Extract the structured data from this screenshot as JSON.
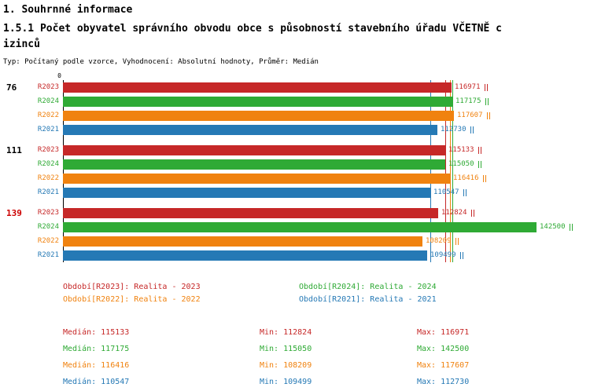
{
  "header": {
    "title": "1. Souhrnné informace",
    "heading_line1": "1.5.1 Počet obyvatel správního obvodu obce s působností stavebního úřadu VČETNĚ c",
    "heading_line2": "izinců",
    "subtitle": "Typ: Počítaný podle vzorce, Vyhodnocení: Absolutní hodnoty, Průměr: Medián"
  },
  "colors": {
    "R2023": "#c62828",
    "R2024": "#2faa35",
    "R2022": "#f0820f",
    "R2021": "#2579b5",
    "group_highlight": "#cc0000",
    "axis": "#000000"
  },
  "chart_data": {
    "type": "bar",
    "orientation": "horizontal",
    "axis_origin_label": "0",
    "xlim": [
      0,
      142500
    ],
    "series_order": [
      "R2023",
      "R2024",
      "R2022",
      "R2021"
    ],
    "groups": [
      {
        "label": "76",
        "highlight": false,
        "values": {
          "R2023": 116971,
          "R2024": 117175,
          "R2022": 117607,
          "R2021": 112730
        }
      },
      {
        "label": "111",
        "highlight": false,
        "values": {
          "R2023": 115133,
          "R2024": 115050,
          "R2022": 116416,
          "R2021": 110547
        }
      },
      {
        "label": "139",
        "highlight": true,
        "values": {
          "R2023": 112824,
          "R2024": 142500,
          "R2022": 108209,
          "R2021": 109499
        }
      }
    ]
  },
  "legend": [
    {
      "series": "R2023",
      "label": "Období[R2023]: Realita - 2023"
    },
    {
      "series": "R2024",
      "label": "Období[R2024]: Realita - 2024"
    },
    {
      "series": "R2022",
      "label": "Období[R2022]: Realita - 2022"
    },
    {
      "series": "R2021",
      "label": "Období[R2021]: Realita - 2021"
    }
  ],
  "stat_labels": {
    "median": "Medián",
    "min": "Min",
    "max": "Max"
  },
  "stats": [
    {
      "series": "R2023",
      "median": 115133,
      "min": 112824,
      "max": 116971
    },
    {
      "series": "R2024",
      "median": 117175,
      "min": 115050,
      "max": 142500
    },
    {
      "series": "R2022",
      "median": 116416,
      "min": 108209,
      "max": 117607
    },
    {
      "series": "R2021",
      "median": 110547,
      "min": 109499,
      "max": 112730
    }
  ]
}
